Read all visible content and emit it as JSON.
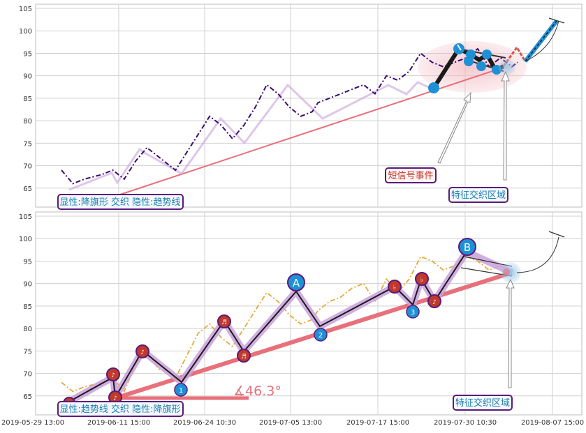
{
  "x_ticks": [
    "2019-05-29 13:00",
    "2019-06-11 15:00",
    "2019-06-24 10:30",
    "2019-07-05 13:00",
    "2019-07-17 15:00",
    "2019-07-30 10:30",
    "2019-08-07 15:00"
  ],
  "y_ticks": [
    65,
    70,
    75,
    80,
    85,
    90,
    95,
    100,
    105
  ],
  "top": {
    "caption": "显性:降旗形 交织 隐性:趋势线",
    "signal_label": "短信号事件",
    "zone_label": "特征交织区域"
  },
  "bottom": {
    "caption": "显性:趋势线 交织 隐性:降旗形",
    "zone_label": "特征交织区域",
    "angle_label": "∡46.3°",
    "marker_labels": [
      "A",
      "B",
      "1",
      "2",
      "3"
    ]
  },
  "colors": {
    "price_top": "#3b0a6e",
    "price_bottom": "#e8a838",
    "trend": "#e8707a",
    "zigzag_glow": "#c9a0dc",
    "blue_marker": "#1e90d6",
    "red_marker": "#c0392b",
    "caption_border": "#5b1a7a",
    "caption_text": "#1a7fb0",
    "signal_text": "#c0392b"
  },
  "chart_data": [
    {
      "type": "line",
      "title": "",
      "xlabel": "",
      "ylabel": "",
      "ylim": [
        62,
        106
      ],
      "grid": true,
      "series": [
        {
          "x": [
            0,
            2,
            4,
            7,
            9,
            11,
            13,
            15,
            17,
            19,
            20,
            22,
            24,
            26,
            28,
            30,
            32,
            34,
            36,
            38,
            40,
            42,
            44,
            45,
            47,
            49,
            51,
            53,
            55,
            57,
            59,
            61,
            63,
            65,
            67,
            69,
            71,
            73,
            75,
            77,
            78,
            79,
            80
          ],
          "values": [
            69,
            66,
            67,
            68,
            69,
            67,
            71,
            74,
            72,
            70,
            69,
            73,
            77,
            81,
            79,
            76,
            79,
            83,
            88,
            86,
            83,
            81,
            82,
            84,
            85,
            86,
            87,
            88,
            86,
            90,
            89,
            91,
            95,
            93,
            92,
            93,
            94,
            96,
            92,
            94,
            93,
            92,
            93
          ]
        }
      ]
    },
    {
      "type": "line",
      "title": "",
      "xlabel": "",
      "ylabel": "",
      "ylim": [
        62,
        106
      ],
      "grid": true,
      "series": [
        {
          "x": [
            0,
            2,
            4,
            7,
            9,
            11,
            13,
            15,
            17,
            19,
            20,
            22,
            24,
            26,
            28,
            30,
            32,
            34,
            36,
            38,
            40,
            42,
            44,
            45,
            47,
            49,
            51,
            53,
            55,
            57,
            59,
            61,
            63,
            65,
            67,
            69,
            71,
            73,
            75,
            77,
            78
          ],
          "values": [
            68,
            66,
            67,
            68,
            69,
            66,
            72,
            75,
            71,
            70,
            69,
            74,
            79,
            81,
            78,
            76,
            80,
            84,
            88,
            86,
            83,
            81,
            82,
            84,
            86,
            87,
            89,
            90,
            86,
            91,
            88,
            91,
            96,
            95,
            93,
            94,
            96,
            95,
            93,
            94,
            93
          ]
        }
      ]
    }
  ]
}
